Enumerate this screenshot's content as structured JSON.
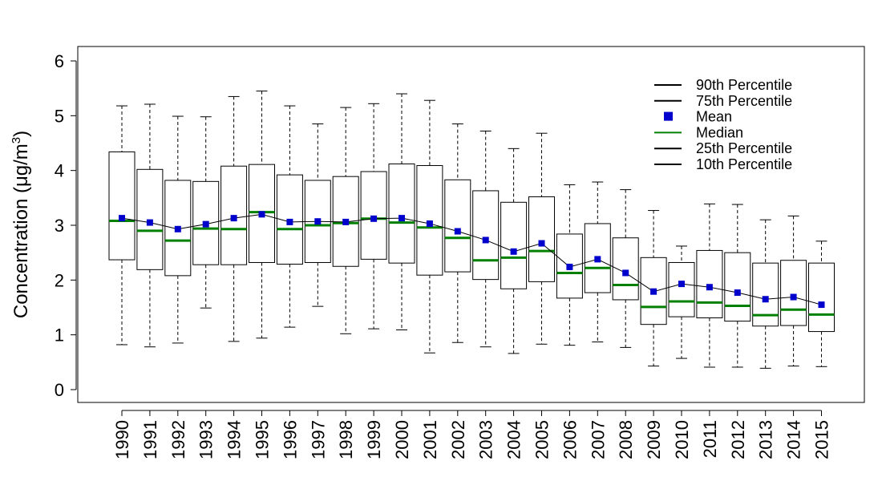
{
  "chart_data": {
    "type": "boxplot",
    "title": "",
    "xlabel": "",
    "ylabel": "Concentration (μg/m",
    "ylabel_superscript": "3",
    "ylabel_suffix": ")",
    "ylim": [
      -0.25,
      6.25
    ],
    "yticks": [
      0,
      1,
      2,
      3,
      4,
      5,
      6
    ],
    "categories": [
      "1990",
      "1991",
      "1992",
      "1993",
      "1994",
      "1995",
      "1996",
      "1997",
      "1998",
      "1999",
      "2000",
      "2001",
      "2002",
      "2003",
      "2004",
      "2005",
      "2006",
      "2007",
      "2008",
      "2009",
      "2010",
      "2011",
      "2012",
      "2013",
      "2014",
      "2015"
    ],
    "series": [
      {
        "name": "90th Percentile",
        "values": [
          5.18,
          5.21,
          4.99,
          4.98,
          5.35,
          5.45,
          5.18,
          4.85,
          5.15,
          5.22,
          5.4,
          5.28,
          4.85,
          4.72,
          4.4,
          4.68,
          3.74,
          3.79,
          3.65,
          3.27,
          2.62,
          3.39,
          3.38,
          3.1,
          3.17,
          2.71
        ]
      },
      {
        "name": "75th Percentile",
        "values": [
          4.34,
          4.02,
          3.82,
          3.8,
          4.08,
          4.11,
          3.92,
          3.82,
          3.89,
          3.98,
          4.12,
          4.09,
          3.83,
          3.63,
          3.42,
          3.52,
          2.84,
          3.03,
          2.77,
          2.41,
          2.32,
          2.54,
          2.5,
          2.31,
          2.36,
          2.31
        ]
      },
      {
        "name": "Mean",
        "values": [
          3.13,
          3.05,
          2.93,
          3.02,
          3.13,
          3.2,
          3.06,
          3.07,
          3.06,
          3.12,
          3.13,
          3.03,
          2.89,
          2.73,
          2.52,
          2.67,
          2.24,
          2.38,
          2.13,
          1.79,
          1.93,
          1.87,
          1.77,
          1.65,
          1.69,
          1.55
        ]
      },
      {
        "name": "Median",
        "values": [
          3.08,
          2.9,
          2.72,
          2.94,
          2.93,
          3.24,
          2.93,
          3.0,
          3.04,
          3.12,
          3.05,
          2.96,
          2.77,
          2.36,
          2.41,
          2.53,
          2.13,
          2.22,
          1.91,
          1.51,
          1.61,
          1.59,
          1.53,
          1.36,
          1.46,
          1.37
        ]
      },
      {
        "name": "25th Percentile",
        "values": [
          2.37,
          2.19,
          2.08,
          2.28,
          2.28,
          2.32,
          2.29,
          2.32,
          2.25,
          2.38,
          2.31,
          2.09,
          2.15,
          2.01,
          1.84,
          1.97,
          1.67,
          1.77,
          1.64,
          1.19,
          1.33,
          1.31,
          1.25,
          1.16,
          1.17,
          1.06
        ]
      },
      {
        "name": "10th Percentile",
        "values": [
          0.82,
          0.78,
          0.85,
          1.49,
          0.88,
          0.94,
          1.14,
          1.52,
          1.02,
          1.11,
          1.09,
          0.67,
          0.86,
          0.78,
          0.66,
          0.83,
          0.81,
          0.87,
          0.77,
          0.43,
          0.57,
          0.41,
          0.41,
          0.39,
          0.43,
          0.42
        ]
      }
    ],
    "legend": {
      "placement": "top-right",
      "entries": [
        {
          "label": "90th Percentile",
          "symbol": "line",
          "color": "#000000"
        },
        {
          "label": "75th Percentile",
          "symbol": "line",
          "color": "#000000"
        },
        {
          "label": "Mean",
          "symbol": "square",
          "color": "#0000cc"
        },
        {
          "label": "Median",
          "symbol": "line",
          "color": "#008000"
        },
        {
          "label": "25th Percentile",
          "symbol": "line",
          "color": "#000000"
        },
        {
          "label": "10th Percentile",
          "symbol": "line",
          "color": "#000000"
        }
      ]
    },
    "colors": {
      "box": "#000000",
      "median": "#008000",
      "mean": "#0000cc",
      "mean_line": "#000000",
      "whisker": "#000000"
    }
  }
}
